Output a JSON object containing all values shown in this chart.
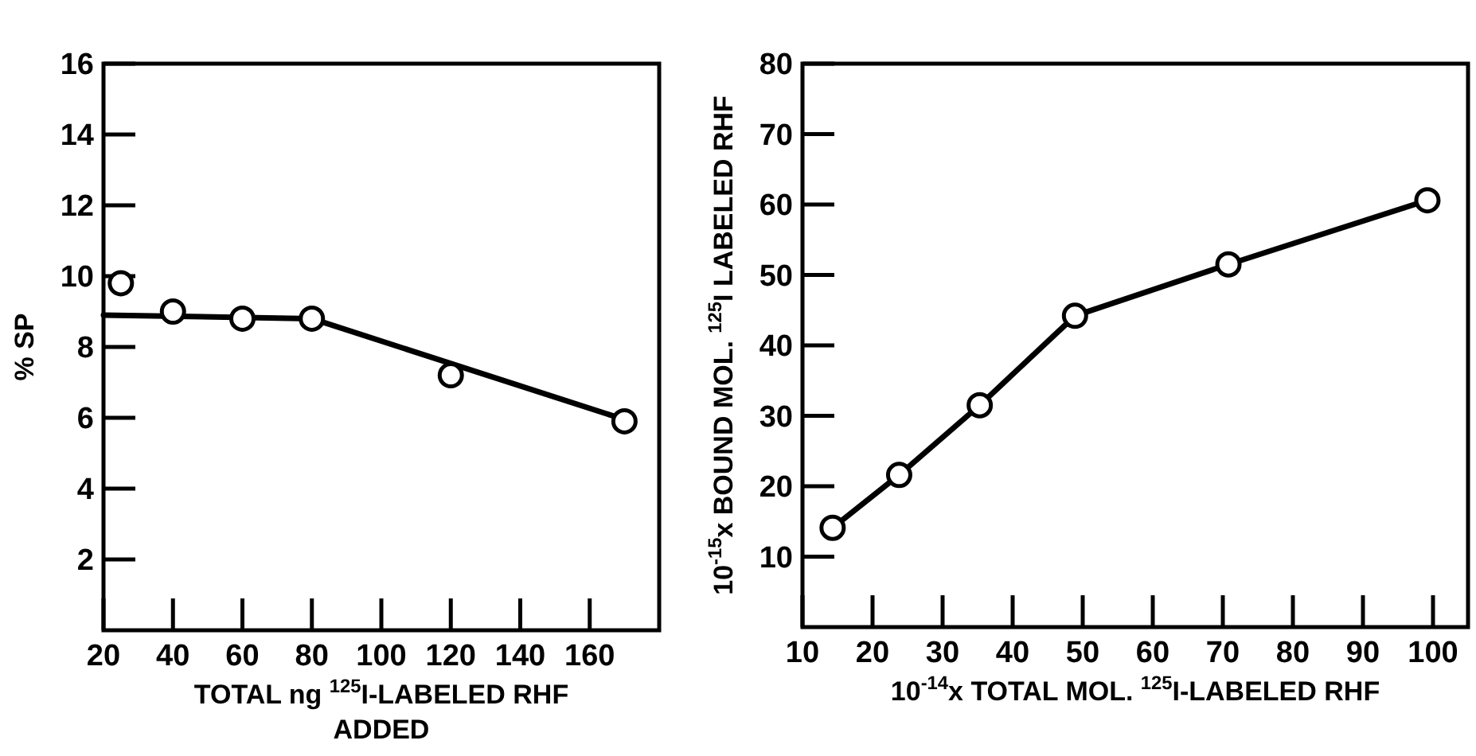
{
  "chart_data": [
    {
      "type": "scatter",
      "xlabel": "TOTAL ng $^{125}$I-LABELED RHF\nADDED",
      "ylabel": "% SP",
      "xlim": [
        20,
        180
      ],
      "xticks": [
        20,
        40,
        60,
        80,
        100,
        120,
        140,
        160
      ],
      "ylim": [
        0,
        16
      ],
      "yticks": [
        2,
        4,
        6,
        8,
        10,
        12,
        14,
        16
      ],
      "marker": "circle",
      "series": [
        {
          "color": "#000000",
          "x": [
            25,
            40,
            60,
            80,
            120,
            170
          ],
          "values": [
            9.8,
            9.0,
            8.8,
            8.8,
            7.2,
            5.9
          ]
        },
        {
          "type": "line",
          "color": "#000000",
          "marker": "none",
          "x": [
            20,
            80,
            170
          ],
          "values": [
            8.9,
            8.8,
            5.95
          ]
        }
      ]
    },
    {
      "type": "line",
      "xlabel": "10$^{-14}$x TOTAL MOL. $^{125}$I-LABELED RHF",
      "ylabel": "10$^{-15}$x BOUND MOL. $^{125}$I LABELED RHF",
      "xlim": [
        10,
        105
      ],
      "xticks": [
        10,
        20,
        30,
        40,
        50,
        60,
        70,
        80,
        90,
        100
      ],
      "ylim": [
        0,
        80
      ],
      "yticks": [
        10,
        20,
        30,
        40,
        50,
        60,
        70,
        80
      ],
      "marker": "circle",
      "series": [
        {
          "color": "#000000",
          "x": [
            14.3,
            23.8,
            35.3,
            48.9,
            70.8,
            99.2
          ],
          "values": [
            14.1,
            21.6,
            31.5,
            44.2,
            51.5,
            60.6
          ]
        }
      ]
    }
  ]
}
